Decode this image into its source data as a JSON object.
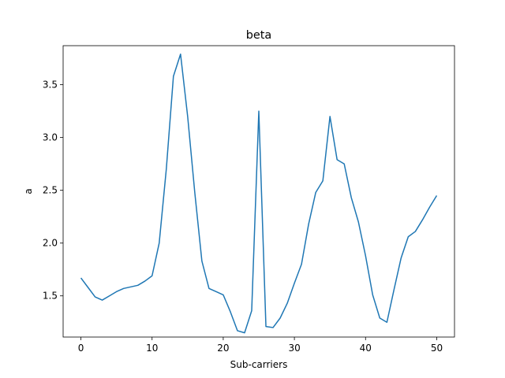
{
  "chart_data": {
    "type": "line",
    "title": "beta",
    "xlabel": "Sub-carriers",
    "ylabel": "a",
    "xlim": [
      -2.5,
      52.5
    ],
    "ylim": [
      1.11,
      3.87
    ],
    "xticks": [
      0,
      10,
      20,
      30,
      40,
      50
    ],
    "yticks": [
      1.5,
      2.0,
      2.5,
      3.0,
      3.5
    ],
    "ytick_labels": [
      "1.5",
      "2.0",
      "2.5",
      "3.0",
      "3.5"
    ],
    "grid": false,
    "series": [
      {
        "color": "#1f77b4",
        "x": [
          0,
          1,
          2,
          3,
          4,
          5,
          6,
          7,
          8,
          9,
          10,
          11,
          12,
          13,
          14,
          15,
          16,
          17,
          18,
          19,
          20,
          21,
          22,
          23,
          24,
          25,
          26,
          27,
          28,
          29,
          30,
          31,
          32,
          33,
          34,
          35,
          36,
          37,
          38,
          39,
          40,
          41,
          42,
          43,
          44,
          45,
          46,
          47,
          48,
          49,
          50
        ],
        "y": [
          1.67,
          1.58,
          1.49,
          1.46,
          1.5,
          1.54,
          1.57,
          1.585,
          1.6,
          1.64,
          1.69,
          2.0,
          2.7,
          3.58,
          3.79,
          3.2,
          2.48,
          1.83,
          1.57,
          1.54,
          1.51,
          1.35,
          1.17,
          1.15,
          1.36,
          3.25,
          1.21,
          1.2,
          1.29,
          1.43,
          1.62,
          1.8,
          2.18,
          2.48,
          2.59,
          3.2,
          2.79,
          2.75,
          2.43,
          2.2,
          1.88,
          1.51,
          1.29,
          1.25,
          1.56,
          1.86,
          2.06,
          2.11,
          2.22,
          2.34,
          2.45
        ]
      }
    ]
  }
}
